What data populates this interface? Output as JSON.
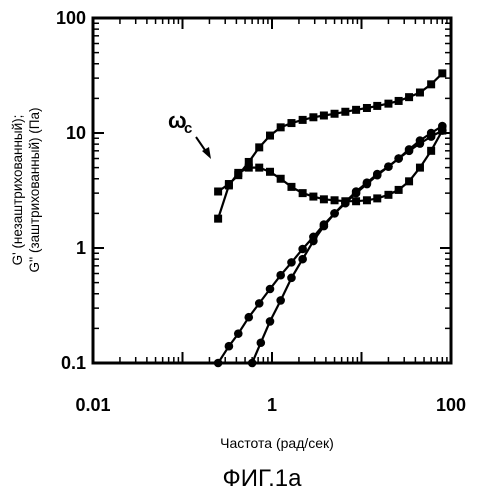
{
  "chart_data": {
    "type": "line",
    "xscale": "log",
    "yscale": "log",
    "xlim": [
      0.01,
      100
    ],
    "ylim": [
      0.1,
      100
    ],
    "x_ticks": [
      "0.01",
      "1",
      "100"
    ],
    "y_ticks": [
      "100",
      "10",
      "1",
      "0.1"
    ],
    "ylabel_line1": "G'  (незаштрихованный);",
    "ylabel_line2": "G'' (заштрихованный) (Па)",
    "xlabel": "Частота (рад/сек)",
    "caption": "ФИГ.1а",
    "annotation": {
      "symbol": "ω",
      "subscript": "c",
      "x": 0.33,
      "y": 4.8
    },
    "grid": false,
    "series": [
      {
        "marker": "square",
        "x": [
          0.25,
          0.33,
          0.42,
          0.55,
          0.72,
          0.95,
          1.25,
          1.65,
          2.2,
          2.9,
          3.8,
          5.0,
          6.6,
          8.7,
          11.5,
          15,
          20,
          26,
          34,
          45,
          60,
          80
        ],
        "y": [
          3.1,
          3.6,
          4.3,
          5.6,
          7.5,
          9.5,
          11.2,
          12.2,
          13.0,
          13.7,
          14.2,
          14.7,
          15.3,
          15.9,
          16.5,
          17.2,
          18.0,
          19.0,
          20.5,
          22.5,
          26.5,
          33.0
        ]
      },
      {
        "marker": "square",
        "x": [
          0.25,
          0.33,
          0.42,
          0.55,
          0.72,
          0.95,
          1.25,
          1.65,
          2.2,
          2.9,
          3.8,
          5.0,
          6.6,
          8.7,
          11.5,
          15,
          20,
          26,
          34,
          45,
          60,
          80
        ],
        "y": [
          1.8,
          3.5,
          4.5,
          5.0,
          5.0,
          4.6,
          4.0,
          3.4,
          3.0,
          2.8,
          2.65,
          2.6,
          2.55,
          2.55,
          2.6,
          2.7,
          2.9,
          3.2,
          3.8,
          5.0,
          7.0,
          10.5
        ]
      },
      {
        "marker": "circle",
        "x": [
          0.25,
          0.33,
          0.42,
          0.55,
          0.72,
          0.95,
          1.25,
          1.65,
          2.2,
          2.9,
          3.8,
          5.0,
          6.6,
          8.7,
          11.5,
          15,
          20,
          26,
          34,
          45,
          60,
          80
        ],
        "y": [
          0.1,
          0.14,
          0.18,
          0.25,
          0.33,
          0.44,
          0.58,
          0.75,
          0.98,
          1.25,
          1.6,
          2.0,
          2.45,
          3.0,
          3.6,
          4.3,
          5.1,
          6.0,
          7.2,
          8.6,
          10.0,
          11.5
        ]
      },
      {
        "marker": "circle",
        "x": [
          0.6,
          0.75,
          0.95,
          1.25,
          1.65,
          2.2,
          2.9,
          3.8,
          5.0,
          6.6,
          8.7,
          11.5,
          15,
          20,
          26,
          34,
          45,
          60,
          80
        ],
        "y": [
          0.1,
          0.15,
          0.23,
          0.35,
          0.55,
          0.8,
          1.15,
          1.55,
          2.0,
          2.5,
          3.1,
          3.7,
          4.4,
          5.1,
          6.0,
          7.0,
          8.1,
          9.3,
          10.5
        ]
      }
    ]
  },
  "colors": {
    "ink": "#000000",
    "background": "#ffffff"
  }
}
